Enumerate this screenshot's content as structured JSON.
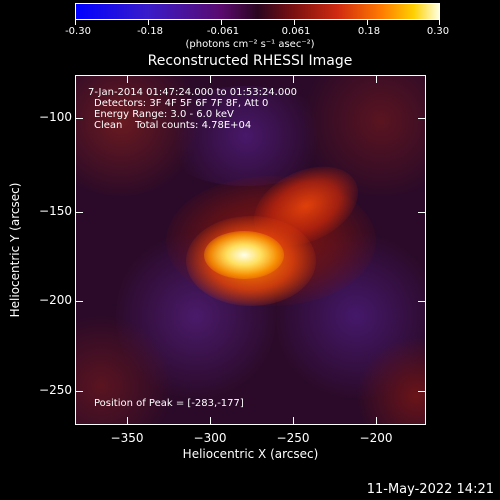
{
  "colorbar": {
    "tick_labels": [
      "-0.30",
      "-0.18",
      "-0.061",
      "0.061",
      "0.18",
      "0.30"
    ],
    "units": "(photons cm⁻² s⁻¹ asec⁻²)"
  },
  "title": "Reconstructed RHESSI Image",
  "annotations": {
    "time_range": "7-Jan-2014 01:47:24.000 to 01:53:24.000",
    "detectors": "Detectors: 3F 4F 5F 6F 7F 8F, Att 0",
    "energy": "Energy Range: 3.0 - 6.0 keV",
    "method": "Clean    Total counts: 4.78E+04",
    "peak": "Position of Peak = [-283,-177]"
  },
  "axes": {
    "x_title": "Heliocentric X (arcsec)",
    "y_title": "Heliocentric Y (arcsec)",
    "x_ticks": [
      "−350",
      "−300",
      "−250",
      "−200"
    ],
    "y_ticks": [
      "−100",
      "−150",
      "−200",
      "−250"
    ]
  },
  "timestamp": "11-May-2022 14:21"
}
